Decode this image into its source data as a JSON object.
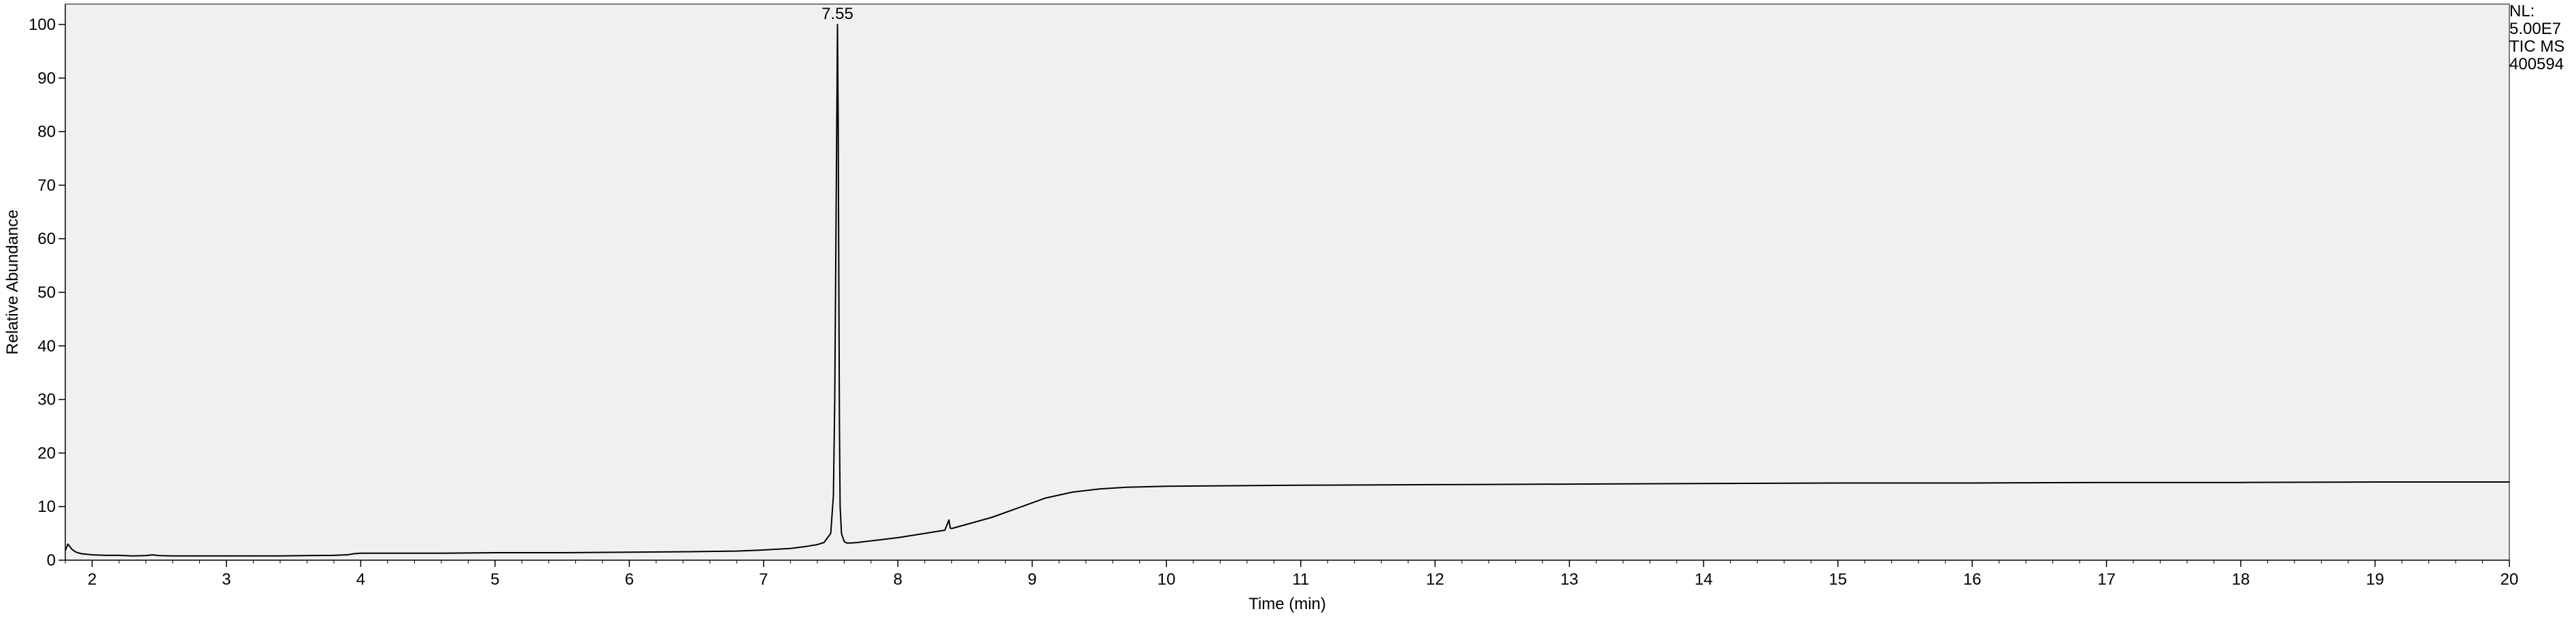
{
  "chart_data": {
    "type": "line",
    "title": "",
    "xlabel": "Time (min)",
    "ylabel": "Relative Abundance",
    "xlim": [
      1.8,
      20
    ],
    "ylim": [
      0,
      100
    ],
    "x_ticks": [
      2,
      3,
      4,
      5,
      6,
      7,
      8,
      9,
      10,
      11,
      12,
      13,
      14,
      15,
      16,
      17,
      18,
      19,
      20
    ],
    "y_ticks": [
      0,
      10,
      20,
      30,
      40,
      50,
      60,
      70,
      80,
      90,
      100
    ],
    "grid": false,
    "legend": "none",
    "info_lines": [
      "NL:",
      "5.00E7",
      "TIC  MS",
      "400594"
    ],
    "peaks": [
      {
        "label": "7.55",
        "x": 7.55,
        "y": 100
      }
    ],
    "series": [
      {
        "color": "#000000",
        "x": [
          1.8,
          1.82,
          1.85,
          1.88,
          1.92,
          1.96,
          2.0,
          2.1,
          2.2,
          2.3,
          2.4,
          2.45,
          2.5,
          2.6,
          2.8,
          3.0,
          3.2,
          3.4,
          3.6,
          3.8,
          3.9,
          3.95,
          4.0,
          4.1,
          4.3,
          4.6,
          5.0,
          5.5,
          6.0,
          6.5,
          6.8,
          7.0,
          7.2,
          7.3,
          7.4,
          7.45,
          7.5,
          7.52,
          7.53,
          7.54,
          7.545,
          7.55,
          7.555,
          7.56,
          7.565,
          7.57,
          7.58,
          7.6,
          7.62,
          7.65,
          7.7,
          7.8,
          8.0,
          8.2,
          8.35,
          8.38,
          8.39,
          8.4,
          8.5,
          8.7,
          8.9,
          9.1,
          9.3,
          9.5,
          9.7,
          10.0,
          10.5,
          11.0,
          12.0,
          13.0,
          14.0,
          15.0,
          16.0,
          17.0,
          18.0,
          19.0,
          20.0
        ],
        "y": [
          1.8,
          3.0,
          2.0,
          1.5,
          1.2,
          1.1,
          1.0,
          0.9,
          0.9,
          0.8,
          0.85,
          1.0,
          0.85,
          0.8,
          0.8,
          0.8,
          0.8,
          0.8,
          0.85,
          0.9,
          1.0,
          1.2,
          1.3,
          1.3,
          1.3,
          1.3,
          1.4,
          1.4,
          1.5,
          1.6,
          1.7,
          1.9,
          2.2,
          2.5,
          2.9,
          3.3,
          5.0,
          12.0,
          30.0,
          65.0,
          82.0,
          100.0,
          83.0,
          55.0,
          25.0,
          10.0,
          5.0,
          3.5,
          3.2,
          3.2,
          3.3,
          3.6,
          4.2,
          5.0,
          5.6,
          7.5,
          6.0,
          5.9,
          6.6,
          8.0,
          9.8,
          11.6,
          12.7,
          13.3,
          13.6,
          13.8,
          13.9,
          14.0,
          14.1,
          14.2,
          14.3,
          14.4,
          14.4,
          14.5,
          14.5,
          14.6,
          14.6
        ]
      }
    ]
  }
}
